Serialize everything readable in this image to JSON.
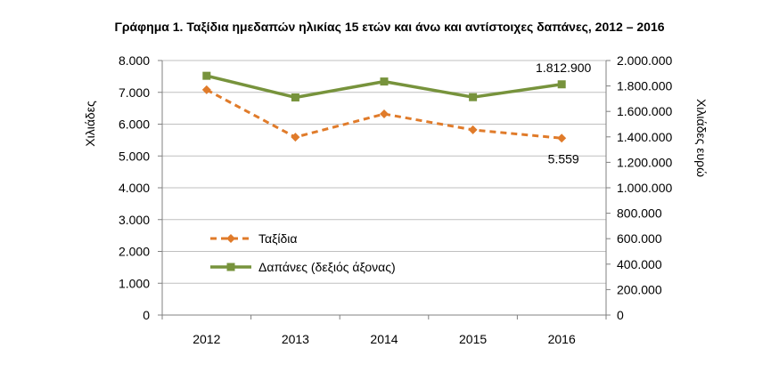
{
  "chart_data": {
    "type": "line",
    "title": "Γράφημα 1. Ταξίδια ημεδαπών ηλικίας 15 ετών και άνω και αντίστοιχες δαπάνες, 2012 – 2016",
    "categories": [
      "2012",
      "2013",
      "2014",
      "2015",
      "2016"
    ],
    "ylabel_left": "Χιλιάδες",
    "ylabel_right": "Χιλιάδες ευρώ",
    "ylim_left": [
      0,
      8000
    ],
    "ylim_right": [
      0,
      2000000
    ],
    "yticks_left": [
      "0",
      "1.000",
      "2.000",
      "3.000",
      "4.000",
      "5.000",
      "6.000",
      "7.000",
      "8.000"
    ],
    "yticks_right": [
      "0",
      "200.000",
      "400.000",
      "600.000",
      "800.000",
      "1.000.000",
      "1.200.000",
      "1.400.000",
      "1.600.000",
      "1.800.000",
      "2.000.000"
    ],
    "grid": true,
    "legend_position": "inside-bottom-left",
    "series": [
      {
        "name": "Ταξίδια",
        "axis": "left",
        "values": [
          7080,
          5590,
          6320,
          5820,
          5559
        ],
        "color": "#e07b2a",
        "style": "dashed",
        "marker": "diamond",
        "data_labels": [
          null,
          null,
          null,
          null,
          "5.559"
        ]
      },
      {
        "name": "Δαπάνες (δεξιός άξονας)",
        "axis": "right",
        "values": [
          1880000,
          1710000,
          1835000,
          1712000,
          1812900
        ],
        "color": "#77933c",
        "style": "solid",
        "marker": "square",
        "data_labels": [
          null,
          null,
          null,
          null,
          "1.812.900"
        ]
      }
    ]
  }
}
